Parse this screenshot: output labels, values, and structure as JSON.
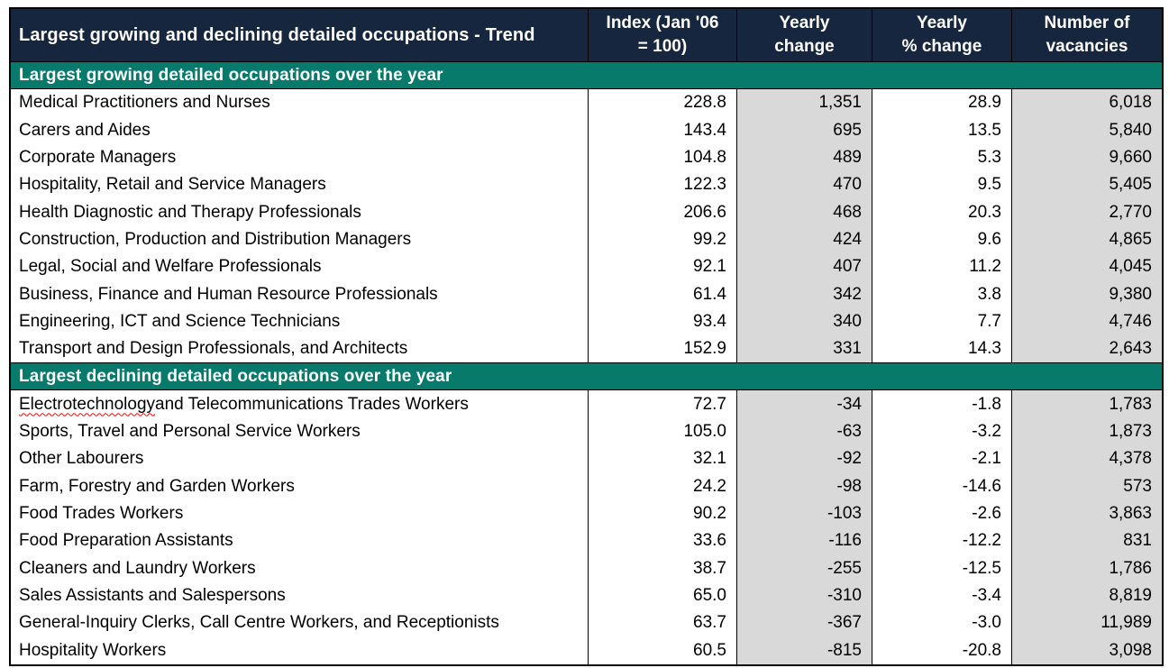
{
  "chart_data": {
    "type": "table",
    "title": "Largest growing and declining detailed occupations - Trend",
    "columns": [
      "Index (Jan '06\n= 100)",
      "Yearly\nchange",
      "Yearly\n% change",
      "Number of\nvacancies"
    ],
    "sections": [
      {
        "header": "Largest growing detailed occupations over the year",
        "rows": [
          {
            "occupation": "Medical Practitioners and Nurses",
            "index": "228.8",
            "yearly_change": "1,351",
            "yearly_pct_change": "28.9",
            "vacancies": "6,018"
          },
          {
            "occupation": "Carers and Aides",
            "index": "143.4",
            "yearly_change": "695",
            "yearly_pct_change": "13.5",
            "vacancies": "5,840"
          },
          {
            "occupation": "Corporate Managers",
            "index": "104.8",
            "yearly_change": "489",
            "yearly_pct_change": "5.3",
            "vacancies": "9,660"
          },
          {
            "occupation": "Hospitality, Retail and Service Managers",
            "index": "122.3",
            "yearly_change": "470",
            "yearly_pct_change": "9.5",
            "vacancies": "5,405"
          },
          {
            "occupation": "Health Diagnostic and Therapy Professionals",
            "index": "206.6",
            "yearly_change": "468",
            "yearly_pct_change": "20.3",
            "vacancies": "2,770"
          },
          {
            "occupation": "Construction, Production and Distribution Managers",
            "index": "99.2",
            "yearly_change": "424",
            "yearly_pct_change": "9.6",
            "vacancies": "4,865"
          },
          {
            "occupation": "Legal, Social and Welfare Professionals",
            "index": "92.1",
            "yearly_change": "407",
            "yearly_pct_change": "11.2",
            "vacancies": "4,045"
          },
          {
            "occupation": "Business, Finance and Human Resource Professionals",
            "index": "61.4",
            "yearly_change": "342",
            "yearly_pct_change": "3.8",
            "vacancies": "9,380"
          },
          {
            "occupation": "Engineering, ICT and Science Technicians",
            "index": "93.4",
            "yearly_change": "340",
            "yearly_pct_change": "7.7",
            "vacancies": "4,746"
          },
          {
            "occupation": "Transport and Design Professionals, and Architects",
            "index": "152.9",
            "yearly_change": "331",
            "yearly_pct_change": "14.3",
            "vacancies": "2,643"
          }
        ]
      },
      {
        "header": "Largest declining detailed occupations over the year",
        "rows": [
          {
            "occupation": "Electrotechnology and Telecommunications Trades Workers",
            "misspelled": "Electrotechnology",
            "index": "72.7",
            "yearly_change": "-34",
            "yearly_pct_change": "-1.8",
            "vacancies": "1,783"
          },
          {
            "occupation": "Sports, Travel and Personal Service Workers",
            "index": "105.0",
            "yearly_change": "-63",
            "yearly_pct_change": "-3.2",
            "vacancies": "1,873"
          },
          {
            "occupation": "Other Labourers",
            "index": "32.1",
            "yearly_change": "-92",
            "yearly_pct_change": "-2.1",
            "vacancies": "4,378"
          },
          {
            "occupation": "Farm, Forestry and Garden Workers",
            "index": "24.2",
            "yearly_change": "-98",
            "yearly_pct_change": "-14.6",
            "vacancies": "573"
          },
          {
            "occupation": "Food Trades Workers",
            "index": "90.2",
            "yearly_change": "-103",
            "yearly_pct_change": "-2.6",
            "vacancies": "3,863"
          },
          {
            "occupation": "Food Preparation Assistants",
            "index": "33.6",
            "yearly_change": "-116",
            "yearly_pct_change": "-12.2",
            "vacancies": "831"
          },
          {
            "occupation": "Cleaners and Laundry Workers",
            "index": "38.7",
            "yearly_change": "-255",
            "yearly_pct_change": "-12.5",
            "vacancies": "1,786"
          },
          {
            "occupation": "Sales Assistants and Salespersons",
            "index": "65.0",
            "yearly_change": "-310",
            "yearly_pct_change": "-3.4",
            "vacancies": "8,819"
          },
          {
            "occupation": "General-Inquiry Clerks, Call Centre Workers, and Receptionists",
            "index": "63.7",
            "yearly_change": "-367",
            "yearly_pct_change": "-3.0",
            "vacancies": "11,989"
          },
          {
            "occupation": "Hospitality Workers",
            "index": "60.5",
            "yearly_change": "-815",
            "yearly_pct_change": "-20.8",
            "vacancies": "3,098"
          }
        ]
      }
    ],
    "layout": {
      "header_bg": "#16263E",
      "section_band_bg": "#077A6C",
      "shaded_column_bg": "#D9D9D9",
      "header_text_color": "#FFFFFF",
      "body_text_color": "#000000",
      "border_color": "#000000",
      "spellcheck_underline_color": "#FF0000",
      "shaded_columns": [
        "Yearly change",
        "Number of vacancies"
      ]
    }
  }
}
